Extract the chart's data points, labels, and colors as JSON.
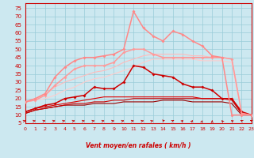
{
  "xlabel": "Vent moyen/en rafales ( km/h )",
  "xlim": [
    0,
    23
  ],
  "ylim": [
    5,
    78
  ],
  "yticks": [
    5,
    10,
    15,
    20,
    25,
    30,
    35,
    40,
    45,
    50,
    55,
    60,
    65,
    70,
    75
  ],
  "xticks": [
    0,
    1,
    2,
    3,
    4,
    5,
    6,
    7,
    8,
    9,
    10,
    11,
    12,
    13,
    14,
    15,
    16,
    17,
    18,
    19,
    20,
    21,
    22,
    23
  ],
  "background_color": "#cce8f0",
  "grid_color": "#99ccd8",
  "series": [
    {
      "x": [
        0,
        1,
        2,
        3,
        4,
        5,
        6,
        7,
        8,
        9,
        10,
        11,
        12,
        13,
        14,
        15,
        16,
        17,
        18,
        19,
        20,
        21,
        22,
        23
      ],
      "y": [
        11,
        13,
        14,
        15,
        16,
        16,
        16,
        17,
        17,
        17,
        18,
        18,
        18,
        18,
        19,
        19,
        19,
        18,
        18,
        18,
        18,
        17,
        10,
        10
      ],
      "color": "#990000",
      "lw": 0.8,
      "marker": null
    },
    {
      "x": [
        0,
        1,
        2,
        3,
        4,
        5,
        6,
        7,
        8,
        9,
        10,
        11,
        12,
        13,
        14,
        15,
        16,
        17,
        18,
        19,
        20,
        21,
        22,
        23
      ],
      "y": [
        11,
        13,
        14,
        15,
        16,
        17,
        17,
        18,
        18,
        19,
        19,
        20,
        20,
        20,
        20,
        20,
        20,
        20,
        20,
        20,
        20,
        19,
        11,
        10
      ],
      "color": "#cc0000",
      "lw": 0.8,
      "marker": null
    },
    {
      "x": [
        0,
        1,
        2,
        3,
        4,
        5,
        6,
        7,
        8,
        9,
        10,
        11,
        12,
        13,
        14,
        15,
        16,
        17,
        18,
        19,
        20,
        21,
        22,
        23
      ],
      "y": [
        12,
        14,
        15,
        16,
        17,
        18,
        19,
        20,
        21,
        21,
        21,
        21,
        21,
        21,
        21,
        21,
        21,
        21,
        20,
        20,
        20,
        20,
        11,
        10
      ],
      "color": "#dd0000",
      "lw": 0.8,
      "marker": null
    },
    {
      "x": [
        0,
        1,
        2,
        3,
        4,
        5,
        6,
        7,
        8,
        9,
        10,
        11,
        12,
        13,
        14,
        15,
        16,
        17,
        18,
        19,
        20,
        21,
        22,
        23
      ],
      "y": [
        12,
        14,
        16,
        17,
        20,
        21,
        22,
        27,
        26,
        26,
        30,
        40,
        39,
        35,
        34,
        33,
        29,
        27,
        27,
        25,
        20,
        20,
        12,
        10
      ],
      "color": "#cc0000",
      "lw": 1.1,
      "marker": "D",
      "ms": 2.0
    },
    {
      "x": [
        0,
        1,
        2,
        3,
        4,
        5,
        6,
        7,
        8,
        9,
        10,
        11,
        12,
        13,
        14,
        15,
        16,
        17,
        18,
        19,
        20,
        21,
        22,
        23
      ],
      "y": [
        18,
        19,
        20,
        22,
        25,
        27,
        30,
        32,
        33,
        35,
        37,
        39,
        42,
        44,
        44,
        44,
        44,
        44,
        43,
        43,
        43,
        42,
        11,
        10
      ],
      "color": "#ffcccc",
      "lw": 0.8,
      "marker": null
    },
    {
      "x": [
        0,
        1,
        2,
        3,
        4,
        5,
        6,
        7,
        8,
        9,
        10,
        11,
        12,
        13,
        14,
        15,
        16,
        17,
        18,
        19,
        20,
        21,
        22,
        23
      ],
      "y": [
        18,
        20,
        22,
        27,
        30,
        32,
        34,
        36,
        37,
        39,
        42,
        44,
        46,
        47,
        47,
        47,
        47,
        46,
        46,
        45,
        45,
        44,
        12,
        10
      ],
      "color": "#ffbbbb",
      "lw": 0.8,
      "marker": null
    },
    {
      "x": [
        0,
        1,
        2,
        3,
        4,
        5,
        6,
        7,
        8,
        9,
        10,
        11,
        12,
        13,
        14,
        15,
        16,
        17,
        18,
        19,
        20,
        21,
        22,
        23
      ],
      "y": [
        18,
        19,
        22,
        28,
        33,
        38,
        40,
        40,
        40,
        42,
        48,
        50,
        50,
        47,
        45,
        45,
        45,
        45,
        45,
        45,
        45,
        44,
        11,
        10
      ],
      "color": "#ff9999",
      "lw": 1.1,
      "marker": "D",
      "ms": 2.0
    },
    {
      "x": [
        0,
        1,
        2,
        3,
        4,
        5,
        6,
        7,
        8,
        9,
        10,
        11,
        12,
        13,
        14,
        15,
        16,
        17,
        18,
        19,
        20,
        21,
        22,
        23
      ],
      "y": [
        18,
        20,
        23,
        33,
        39,
        43,
        45,
        45,
        46,
        47,
        50,
        73,
        63,
        58,
        55,
        61,
        59,
        55,
        52,
        46,
        45,
        10,
        10,
        10
      ],
      "color": "#ff8888",
      "lw": 1.1,
      "marker": "D",
      "ms": 2.0
    }
  ],
  "arrow_angles_deg": [
    45,
    45,
    45,
    45,
    45,
    45,
    45,
    45,
    45,
    45,
    45,
    45,
    45,
    40,
    35,
    20,
    15,
    10,
    5,
    0,
    350,
    345,
    340,
    335
  ]
}
